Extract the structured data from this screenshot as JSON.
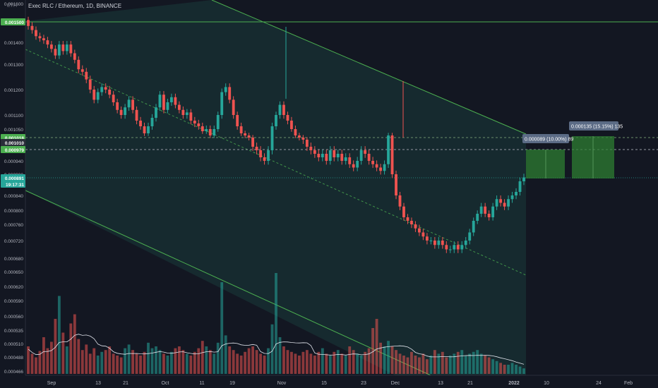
{
  "header": {
    "symbol": "Exec RLC / Ethereum, 1D, BINANCE",
    "currency": "ETH"
  },
  "colors": {
    "background": "#131722",
    "up": "#26a69a",
    "down": "#ef5350",
    "channel": "#4caf50",
    "channel_fill": "#1a3a3a",
    "volume_ma": "#e0e3eb",
    "target_box": "#2e7d32"
  },
  "chart_data": {
    "type": "candlestick",
    "x_ticks": [
      "Sep",
      "13",
      "21",
      "Oct",
      "11",
      "19",
      "Nov",
      "15",
      "23",
      "Dec",
      "13",
      "21",
      "2022",
      "10",
      "24",
      "Feb"
    ],
    "y_ticks": [
      "0.001600",
      "0.001500",
      "0.001400",
      "0.001300",
      "0.001200",
      "0.001100",
      "0.001050",
      "0.001000",
      "0.000940",
      "0.000900",
      "0.000840",
      "0.000800",
      "0.000760",
      "0.000720",
      "0.000680",
      "0.000650",
      "0.000620",
      "0.000590",
      "0.000560",
      "0.000535",
      "0.000510",
      "0.000488",
      "0.000466"
    ],
    "price_labels": [
      {
        "text": "0.001500",
        "style": "green"
      },
      {
        "text": "0.001018",
        "style": "green"
      },
      {
        "text": "0.001010",
        "style": "gray"
      },
      {
        "text": "0.000979",
        "style": "green"
      },
      {
        "text": "0.000891",
        "style": "teal"
      },
      {
        "text": "19:17:31",
        "style": "teal"
      }
    ],
    "targets": [
      {
        "label": "0.000089 (10.00%) 89"
      },
      {
        "label": "0.000135 (15.15%) 135"
      }
    ],
    "ohlc_close": [
      0.00148,
      0.00146,
      0.00143,
      0.00142,
      0.00141,
      0.00139,
      0.00137,
      0.00134,
      0.00139,
      0.00136,
      0.00139,
      0.00135,
      0.00132,
      0.00128,
      0.00127,
      0.00124,
      0.0012,
      0.00116,
      0.00119,
      0.00121,
      0.0012,
      0.00118,
      0.00115,
      0.00112,
      0.0011,
      0.00113,
      0.00116,
      0.00112,
      0.00108,
      0.00106,
      0.00103,
      0.00106,
      0.00109,
      0.00113,
      0.00118,
      0.00112,
      0.00115,
      0.00117,
      0.00114,
      0.00112,
      0.0011,
      0.00111,
      0.00108,
      0.00107,
      0.00106,
      0.00104,
      0.00105,
      0.00102,
      0.00105,
      0.0011,
      0.00119,
      0.00121,
      0.00116,
      0.0011,
      0.00106,
      0.00103,
      0.00102,
      0.00101,
      0.00098,
      0.00097,
      0.00095,
      0.00094,
      0.00097,
      0.00106,
      0.0011,
      0.00114,
      0.0011,
      0.00108,
      0.00105,
      0.00102,
      0.00101,
      0.001,
      0.00098,
      0.00097,
      0.00096,
      0.00095,
      0.00096,
      0.00094,
      0.00097,
      0.00095,
      0.00096,
      0.00094,
      0.00095,
      0.00093,
      0.00092,
      0.00094,
      0.00097,
      0.00096,
      0.00094,
      0.00093,
      0.00092,
      0.00091,
      0.00093,
      0.00102,
      0.0009,
      0.00084,
      0.00081,
      0.00078,
      0.00077,
      0.00076,
      0.00075,
      0.00074,
      0.00073,
      0.00072,
      0.00072,
      0.00071,
      0.00072,
      0.00071,
      0.0007,
      0.0007,
      0.00071,
      0.0007,
      0.00071,
      0.00072,
      0.00074,
      0.00077,
      0.00079,
      0.00081,
      0.00079,
      0.00078,
      0.00081,
      0.00083,
      0.00082,
      0.00081,
      0.00083,
      0.00084,
      0.00085,
      0.00088,
      0.000891
    ],
    "volumes": [
      30,
      22,
      18,
      25,
      40,
      28,
      35,
      60,
      85,
      45,
      30,
      55,
      65,
      38,
      26,
      32,
      22,
      28,
      20,
      24,
      26,
      30,
      22,
      20,
      18,
      28,
      32,
      26,
      22,
      20,
      24,
      34,
      28,
      30,
      26,
      22,
      20,
      24,
      28,
      30,
      26,
      22,
      20,
      24,
      28,
      36,
      30,
      26,
      22,
      34,
      100,
      42,
      30,
      26,
      22,
      20,
      24,
      28,
      30,
      26,
      22,
      20,
      28,
      54,
      110,
      40,
      30,
      26,
      24,
      22,
      20,
      24,
      26,
      22,
      20,
      24,
      28,
      22,
      20,
      24,
      26,
      22,
      20,
      30,
      26,
      22,
      20,
      24,
      28,
      50,
      60,
      34,
      30,
      36,
      30,
      26,
      22,
      20,
      18,
      24,
      20,
      18,
      22,
      16,
      20,
      26,
      22,
      24,
      18,
      20,
      22,
      24,
      26,
      20,
      22,
      24,
      26,
      22,
      20,
      18,
      16,
      14,
      12,
      10,
      10,
      12,
      10,
      8,
      6
    ],
    "volume_ma": true,
    "grid": false
  }
}
